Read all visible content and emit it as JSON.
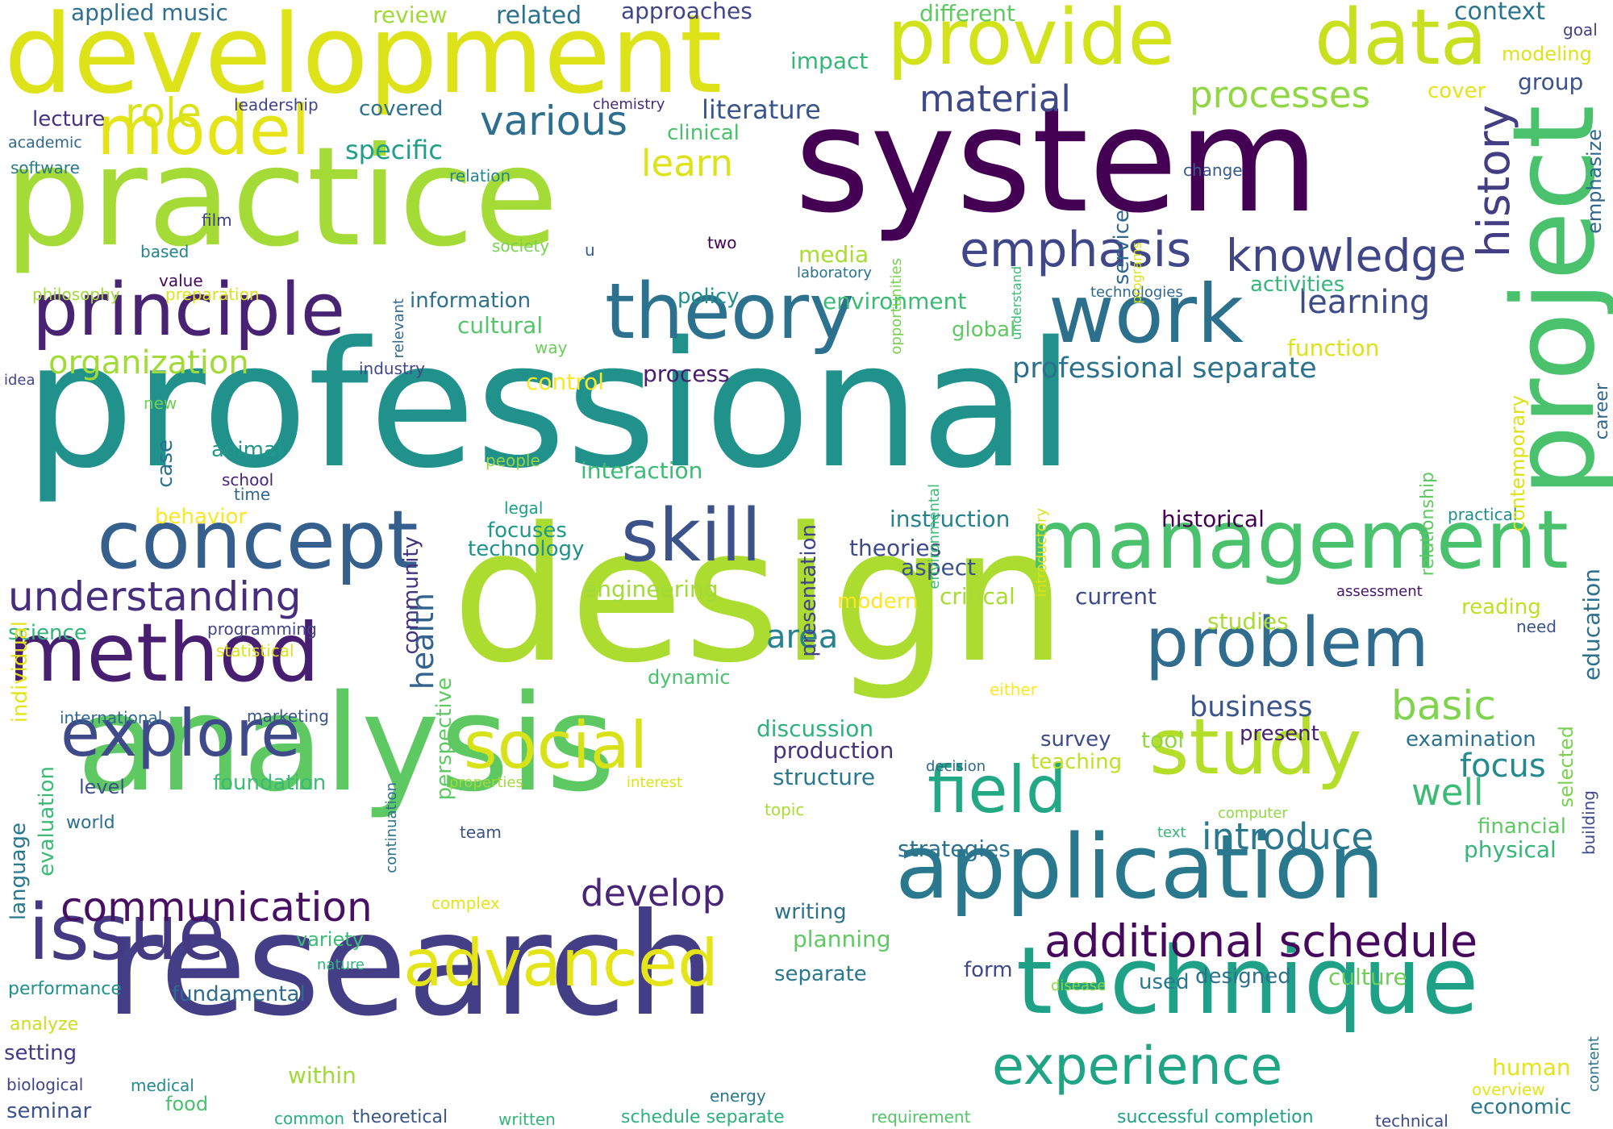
{
  "words": [
    {
      "text": "professional",
      "color": "#21918c",
      "vertical": false
    },
    {
      "text": "design",
      "color": "#addc30",
      "vertical": false
    },
    {
      "text": "research",
      "color": "#433e85",
      "vertical": false
    },
    {
      "text": "analysis",
      "color": "#5ec962",
      "vertical": false
    },
    {
      "text": "system",
      "color": "#440154",
      "vertical": false
    },
    {
      "text": "practice",
      "color": "#a5db36",
      "vertical": false
    },
    {
      "text": "development",
      "color": "#dde318",
      "vertical": false
    },
    {
      "text": "application",
      "color": "#2a788e",
      "vertical": false
    },
    {
      "text": "technique",
      "color": "#1fa187",
      "vertical": false
    },
    {
      "text": "management",
      "color": "#4ac16d",
      "vertical": false
    },
    {
      "text": "provide",
      "color": "#d2e21b",
      "vertical": false
    },
    {
      "text": "data",
      "color": "#c8e020",
      "vertical": false
    },
    {
      "text": "concept",
      "color": "#355f8d",
      "vertical": false
    },
    {
      "text": "theory",
      "color": "#2c728e",
      "vertical": false
    },
    {
      "text": "work",
      "color": "#2d708e",
      "vertical": false
    },
    {
      "text": "problem",
      "color": "#2f6c8e",
      "vertical": false
    },
    {
      "text": "project",
      "color": "#4ac16d",
      "vertical": true
    },
    {
      "text": "study",
      "color": "#b5de2b",
      "vertical": false
    },
    {
      "text": "method",
      "color": "#481f70",
      "vertical": false
    },
    {
      "text": "model",
      "color": "#e5e419",
      "vertical": false
    },
    {
      "text": "issue",
      "color": "#443983",
      "vertical": false
    },
    {
      "text": "explore",
      "color": "#3e4a89",
      "vertical": false
    },
    {
      "text": "principle",
      "color": "#482374",
      "vertical": false
    },
    {
      "text": "skill",
      "color": "#3b528b",
      "vertical": false
    },
    {
      "text": "social",
      "color": "#d8e219",
      "vertical": false
    },
    {
      "text": "field",
      "color": "#22a884",
      "vertical": false
    },
    {
      "text": "advanced",
      "color": "#e5e419",
      "vertical": false
    },
    {
      "text": "experience",
      "color": "#20a486",
      "vertical": false
    },
    {
      "text": "additional schedule",
      "color": "#46085c",
      "vertical": false
    },
    {
      "text": "emphasis",
      "color": "#3f4788",
      "vertical": false
    },
    {
      "text": "knowledge",
      "color": "#404588",
      "vertical": false
    },
    {
      "text": "history",
      "color": "#433d84",
      "vertical": true
    },
    {
      "text": "understanding",
      "color": "#472d7b",
      "vertical": false
    },
    {
      "text": "communication",
      "color": "#471063",
      "vertical": false
    },
    {
      "text": "role",
      "color": "#dae319",
      "vertical": false
    },
    {
      "text": "various",
      "color": "#2e6e8e",
      "vertical": false
    },
    {
      "text": "processes",
      "color": "#90d743",
      "vertical": false
    },
    {
      "text": "material",
      "color": "#3e4989",
      "vertical": false
    },
    {
      "text": "learning",
      "color": "#3e4c8a",
      "vertical": false
    },
    {
      "text": "learn",
      "color": "#dde318",
      "vertical": false
    },
    {
      "text": "organization",
      "color": "#a2da37",
      "vertical": false
    },
    {
      "text": "develop",
      "color": "#482576",
      "vertical": false
    },
    {
      "text": "basic",
      "color": "#7fd34e",
      "vertical": false
    },
    {
      "text": "well",
      "color": "#3bbb75",
      "vertical": false
    },
    {
      "text": "introduce",
      "color": "#2a778e",
      "vertical": false
    },
    {
      "text": "focus",
      "color": "#238a8d",
      "vertical": false
    },
    {
      "text": "business",
      "color": "#3a548c",
      "vertical": false
    },
    {
      "text": "professional separate",
      "color": "#2c728e",
      "vertical": false
    },
    {
      "text": "area",
      "color": "#26828e",
      "vertical": false
    },
    {
      "text": "health",
      "color": "#33638d",
      "vertical": true
    },
    {
      "text": "literature",
      "color": "#39568c",
      "vertical": false
    },
    {
      "text": "specific",
      "color": "#1f9e89",
      "vertical": false
    },
    {
      "text": "applied music",
      "color": "#2e6f8e",
      "vertical": false
    },
    {
      "text": "related",
      "color": "#2c718e",
      "vertical": false
    },
    {
      "text": "approaches",
      "color": "#414487",
      "vertical": false
    },
    {
      "text": "review",
      "color": "#a0da39",
      "vertical": false
    },
    {
      "text": "different",
      "color": "#5ec962",
      "vertical": false
    },
    {
      "text": "context",
      "color": "#2b748e",
      "vertical": false
    },
    {
      "text": "goal",
      "color": "#424086",
      "vertical": false
    },
    {
      "text": "modeling",
      "color": "#dde318",
      "vertical": false
    },
    {
      "text": "group",
      "color": "#3a538b",
      "vertical": false
    },
    {
      "text": "impact",
      "color": "#35b779",
      "vertical": false
    },
    {
      "text": "cover",
      "color": "#e5e419",
      "vertical": false
    },
    {
      "text": "lecture",
      "color": "#46337f",
      "vertical": false
    },
    {
      "text": "leadership",
      "color": "#414487",
      "vertical": false
    },
    {
      "text": "covered",
      "color": "#2c728e",
      "vertical": false
    },
    {
      "text": "chemistry",
      "color": "#472a7a",
      "vertical": false
    },
    {
      "text": "clinical",
      "color": "#4ac16d",
      "vertical": false
    },
    {
      "text": "academic",
      "color": "#31688e",
      "vertical": false
    },
    {
      "text": "software",
      "color": "#2a788e",
      "vertical": false
    },
    {
      "text": "relation",
      "color": "#25858e",
      "vertical": false
    },
    {
      "text": "change",
      "color": "#365c8d",
      "vertical": false
    },
    {
      "text": "emphasize",
      "color": "#31688e",
      "vertical": true
    },
    {
      "text": "film",
      "color": "#433d84",
      "vertical": false
    },
    {
      "text": "society",
      "color": "#7ad151",
      "vertical": false
    },
    {
      "text": "two",
      "color": "#440154",
      "vertical": false
    },
    {
      "text": "u",
      "color": "#365c8d",
      "vertical": false
    },
    {
      "text": "based",
      "color": "#26828e",
      "vertical": false
    },
    {
      "text": "value",
      "color": "#46085c",
      "vertical": false
    },
    {
      "text": "media",
      "color": "#aadc32",
      "vertical": false
    },
    {
      "text": "laboratory",
      "color": "#2c728e",
      "vertical": false
    },
    {
      "text": "activities",
      "color": "#35b779",
      "vertical": false
    },
    {
      "text": "philosophy",
      "color": "#9fda3a",
      "vertical": false
    },
    {
      "text": "preparation",
      "color": "#dde318",
      "vertical": false
    },
    {
      "text": "information",
      "color": "#2d718e",
      "vertical": false
    },
    {
      "text": "policy",
      "color": "#21908d",
      "vertical": false
    },
    {
      "text": "environment",
      "color": "#3bbb75",
      "vertical": false
    },
    {
      "text": "technologies",
      "color": "#31688e",
      "vertical": false
    },
    {
      "text": "cultural",
      "color": "#54c568",
      "vertical": false
    },
    {
      "text": "global",
      "color": "#5ec962",
      "vertical": false
    },
    {
      "text": "function",
      "color": "#dde318",
      "vertical": false
    },
    {
      "text": "way",
      "color": "#6ccd5a",
      "vertical": false
    },
    {
      "text": "industry",
      "color": "#3f4788",
      "vertical": false
    },
    {
      "text": "idea",
      "color": "#414487",
      "vertical": false
    },
    {
      "text": "control",
      "color": "#fde725",
      "vertical": false
    },
    {
      "text": "process",
      "color": "#481c6e",
      "vertical": false
    },
    {
      "text": "career",
      "color": "#31688e",
      "vertical": true
    },
    {
      "text": "new",
      "color": "#6ece58",
      "vertical": false
    },
    {
      "text": "case",
      "color": "#2c728e",
      "vertical": true
    },
    {
      "text": "animal",
      "color": "#1f988b",
      "vertical": false
    },
    {
      "text": "people",
      "color": "#90d743",
      "vertical": false
    },
    {
      "text": "interaction",
      "color": "#3bbb75",
      "vertical": false
    },
    {
      "text": "school",
      "color": "#482576",
      "vertical": false
    },
    {
      "text": "time",
      "color": "#31688e",
      "vertical": false
    },
    {
      "text": "legal",
      "color": "#1fa088",
      "vertical": false
    },
    {
      "text": "behavior",
      "color": "#fde725",
      "vertical": false
    },
    {
      "text": "instruction",
      "color": "#25838e",
      "vertical": false
    },
    {
      "text": "historical",
      "color": "#440154",
      "vertical": false
    },
    {
      "text": "practical",
      "color": "#228c8d",
      "vertical": false
    },
    {
      "text": "focuses",
      "color": "#1f9a8a",
      "vertical": false
    },
    {
      "text": "technology",
      "color": "#21918c",
      "vertical": false
    },
    {
      "text": "theories",
      "color": "#3e4a89",
      "vertical": false
    },
    {
      "text": "aspect",
      "color": "#3b528b",
      "vertical": false
    },
    {
      "text": "engineering",
      "color": "#a2da37",
      "vertical": false
    },
    {
      "text": "modern",
      "color": "#fde725",
      "vertical": false
    },
    {
      "text": "critical",
      "color": "#a8db34",
      "vertical": false
    },
    {
      "text": "current",
      "color": "#3e4989",
      "vertical": false
    },
    {
      "text": "assessment",
      "color": "#481769",
      "vertical": false
    },
    {
      "text": "reading",
      "color": "#c0df25",
      "vertical": false
    },
    {
      "text": "studies",
      "color": "#aadc32",
      "vertical": false
    },
    {
      "text": "need",
      "color": "#3b528b",
      "vertical": false
    },
    {
      "text": "education",
      "color": "#2d708e",
      "vertical": true
    },
    {
      "text": "science",
      "color": "#2fb47c",
      "vertical": false
    },
    {
      "text": "programming",
      "color": "#414487",
      "vertical": false
    },
    {
      "text": "statistical",
      "color": "#dde318",
      "vertical": false
    },
    {
      "text": "dynamic",
      "color": "#4ac16d",
      "vertical": false
    },
    {
      "text": "either",
      "color": "#fde725",
      "vertical": false
    },
    {
      "text": "international",
      "color": "#31688e",
      "vertical": false
    },
    {
      "text": "marketing",
      "color": "#3b528b",
      "vertical": false
    },
    {
      "text": "discussion",
      "color": "#2db27d",
      "vertical": false
    },
    {
      "text": "production",
      "color": "#46337f",
      "vertical": false
    },
    {
      "text": "survey",
      "color": "#3e4a89",
      "vertical": false
    },
    {
      "text": "tool",
      "color": "#90d743",
      "vertical": false
    },
    {
      "text": "present",
      "color": "#481f70",
      "vertical": false
    },
    {
      "text": "examination",
      "color": "#2c728e",
      "vertical": false
    },
    {
      "text": "structure",
      "color": "#2a788e",
      "vertical": false
    },
    {
      "text": "decision",
      "color": "#31688e",
      "vertical": false
    },
    {
      "text": "teaching",
      "color": "#c2df23",
      "vertical": false
    },
    {
      "text": "level",
      "color": "#3b528b",
      "vertical": false
    },
    {
      "text": "foundation",
      "color": "#3bbb75",
      "vertical": false
    },
    {
      "text": "properties",
      "color": "#9fda3a",
      "vertical": false
    },
    {
      "text": "interest",
      "color": "#dde318",
      "vertical": false
    },
    {
      "text": "topic",
      "color": "#aadc32",
      "vertical": false
    },
    {
      "text": "world",
      "color": "#2d708e",
      "vertical": false
    },
    {
      "text": "team",
      "color": "#3b528b",
      "vertical": false
    },
    {
      "text": "strategies",
      "color": "#2c728e",
      "vertical": false
    },
    {
      "text": "computer",
      "color": "#90d743",
      "vertical": false
    },
    {
      "text": "text",
      "color": "#35b779",
      "vertical": false
    },
    {
      "text": "financial",
      "color": "#5ec962",
      "vertical": false
    },
    {
      "text": "physical",
      "color": "#35b779",
      "vertical": false
    },
    {
      "text": "writing",
      "color": "#2c728e",
      "vertical": false
    },
    {
      "text": "planning",
      "color": "#5ec962",
      "vertical": false
    },
    {
      "text": "complex",
      "color": "#e5e419",
      "vertical": false
    },
    {
      "text": "variety",
      "color": "#3bbb75",
      "vertical": false
    },
    {
      "text": "nature",
      "color": "#31b57b",
      "vertical": false
    },
    {
      "text": "separate",
      "color": "#2a788e",
      "vertical": false
    },
    {
      "text": "form",
      "color": "#3e4989",
      "vertical": false
    },
    {
      "text": "used",
      "color": "#2a788e",
      "vertical": false
    },
    {
      "text": "designed",
      "color": "#2d708e",
      "vertical": false
    },
    {
      "text": "culture",
      "color": "#6ece58",
      "vertical": false
    },
    {
      "text": "disease",
      "color": "#90d743",
      "vertical": false
    },
    {
      "text": "performance",
      "color": "#218f8d",
      "vertical": false
    },
    {
      "text": "fundamental",
      "color": "#2f6b8e",
      "vertical": false
    },
    {
      "text": "analyze",
      "color": "#c8e020",
      "vertical": false
    },
    {
      "text": "setting",
      "color": "#443983",
      "vertical": false
    },
    {
      "text": "within",
      "color": "#a0da39",
      "vertical": false
    },
    {
      "text": "biological",
      "color": "#414487",
      "vertical": false
    },
    {
      "text": "medical",
      "color": "#238a8d",
      "vertical": false
    },
    {
      "text": "food",
      "color": "#4ac16d",
      "vertical": false
    },
    {
      "text": "seminar",
      "color": "#3b528b",
      "vertical": false
    },
    {
      "text": "energy",
      "color": "#2a788e",
      "vertical": false
    },
    {
      "text": "human",
      "color": "#e5e419",
      "vertical": false
    },
    {
      "text": "overview",
      "color": "#e5e419",
      "vertical": false
    },
    {
      "text": "economic",
      "color": "#2a788e",
      "vertical": false
    },
    {
      "text": "common",
      "color": "#29af7f",
      "vertical": false
    },
    {
      "text": "theoretical",
      "color": "#39568c",
      "vertical": false
    },
    {
      "text": "written",
      "color": "#35b779",
      "vertical": false
    },
    {
      "text": "schedule separate",
      "color": "#2db27d",
      "vertical": false
    },
    {
      "text": "requirement",
      "color": "#54c568",
      "vertical": false
    },
    {
      "text": "successful completion",
      "color": "#1fa088",
      "vertical": false
    },
    {
      "text": "technical",
      "color": "#3e4a89",
      "vertical": false
    },
    {
      "text": "language",
      "color": "#2a788e",
      "vertical": true
    },
    {
      "text": "evaluation",
      "color": "#3bbb75",
      "vertical": true
    },
    {
      "text": "individual",
      "color": "#e5e419",
      "vertical": true
    },
    {
      "text": "community",
      "color": "#46337f",
      "vertical": true
    },
    {
      "text": "perspective",
      "color": "#5ec962",
      "vertical": true
    },
    {
      "text": "presentation",
      "color": "#414487",
      "vertical": true
    },
    {
      "text": "continuation",
      "color": "#2c728e",
      "vertical": true
    },
    {
      "text": "relevant",
      "color": "#31688e",
      "vertical": true
    },
    {
      "text": "opportunities",
      "color": "#7ad151",
      "vertical": true
    },
    {
      "text": "understand",
      "color": "#3bbb75",
      "vertical": true
    },
    {
      "text": "programs",
      "color": "#dde318",
      "vertical": true
    },
    {
      "text": "service",
      "color": "#31688e",
      "vertical": true
    },
    {
      "text": "environmental",
      "color": "#3bbb75",
      "vertical": true
    },
    {
      "text": "introductory",
      "color": "#dde318",
      "vertical": true
    },
    {
      "text": "relationship",
      "color": "#5ec962",
      "vertical": true
    },
    {
      "text": "contemporary",
      "color": "#dde318",
      "vertical": true
    },
    {
      "text": "selected",
      "color": "#7ad151",
      "vertical": true
    },
    {
      "text": "building",
      "color": "#3e4a89",
      "vertical": true
    },
    {
      "text": "content",
      "color": "#2c728e",
      "vertical": true
    }
  ]
}
